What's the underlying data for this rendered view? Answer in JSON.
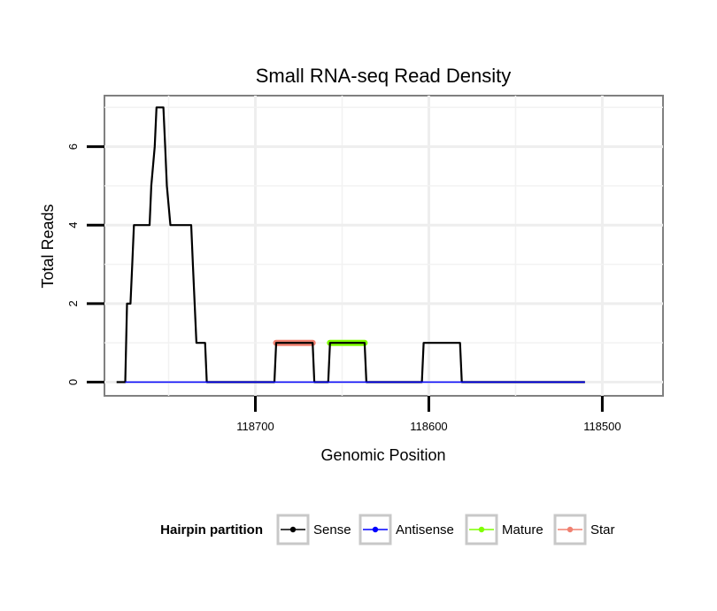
{
  "chart_data": {
    "type": "line",
    "title": "Small RNA-seq Read Density",
    "xlabel": "Genomic Position",
    "ylabel": "Total Reads",
    "x_reversed": true,
    "xlim": [
      118787,
      118465
    ],
    "ylim": [
      -0.35,
      7.3
    ],
    "xticks": [
      118700,
      118600,
      118500
    ],
    "xtick_labels": [
      "118700",
      "118600",
      "118500"
    ],
    "yticks": [
      0,
      2,
      4,
      6
    ],
    "ytick_labels": [
      "0",
      "2",
      "4",
      "6"
    ],
    "grid": true,
    "legend": {
      "title": "Hairpin partition",
      "position": "bottom",
      "entries": [
        {
          "name": "Sense",
          "color": "#000000"
        },
        {
          "name": "Antisense",
          "color": "#0000ff"
        },
        {
          "name": "Mature",
          "color": "#7fff00"
        },
        {
          "name": "Star",
          "color": "#f08070"
        }
      ]
    },
    "series": [
      {
        "name": "Sense",
        "color": "#000000",
        "x": [
          118780,
          118775,
          118774,
          118772,
          118771,
          118770,
          118761,
          118760,
          118758,
          118757,
          118756,
          118754,
          118753,
          118752,
          118751,
          118749,
          118748,
          118737,
          118736,
          118735,
          118734,
          118733,
          118729,
          118728,
          118727,
          118717,
          118716,
          118689,
          118688,
          118667,
          118666,
          118658,
          118657,
          118637,
          118636,
          118604,
          118603,
          118582,
          118581,
          118510
        ],
        "y": [
          0,
          0,
          2,
          2,
          3,
          4,
          4,
          5,
          6,
          7,
          7,
          7,
          7,
          6,
          5,
          4,
          4,
          4,
          3,
          2,
          1,
          1,
          1,
          0,
          0,
          0,
          0,
          0,
          1,
          1,
          0,
          0,
          1,
          1,
          0,
          0,
          1,
          1,
          0,
          0
        ]
      },
      {
        "name": "Antisense",
        "color": "#0000ff",
        "x": [
          118775,
          118510
        ],
        "y": [
          0,
          0
        ]
      },
      {
        "name": "Mature",
        "color": "#7fff00",
        "x": [
          118657,
          118637
        ],
        "y": [
          1,
          1
        ]
      },
      {
        "name": "Star",
        "color": "#f08070",
        "x": [
          118688,
          118667
        ],
        "y": [
          1,
          1
        ]
      }
    ]
  }
}
